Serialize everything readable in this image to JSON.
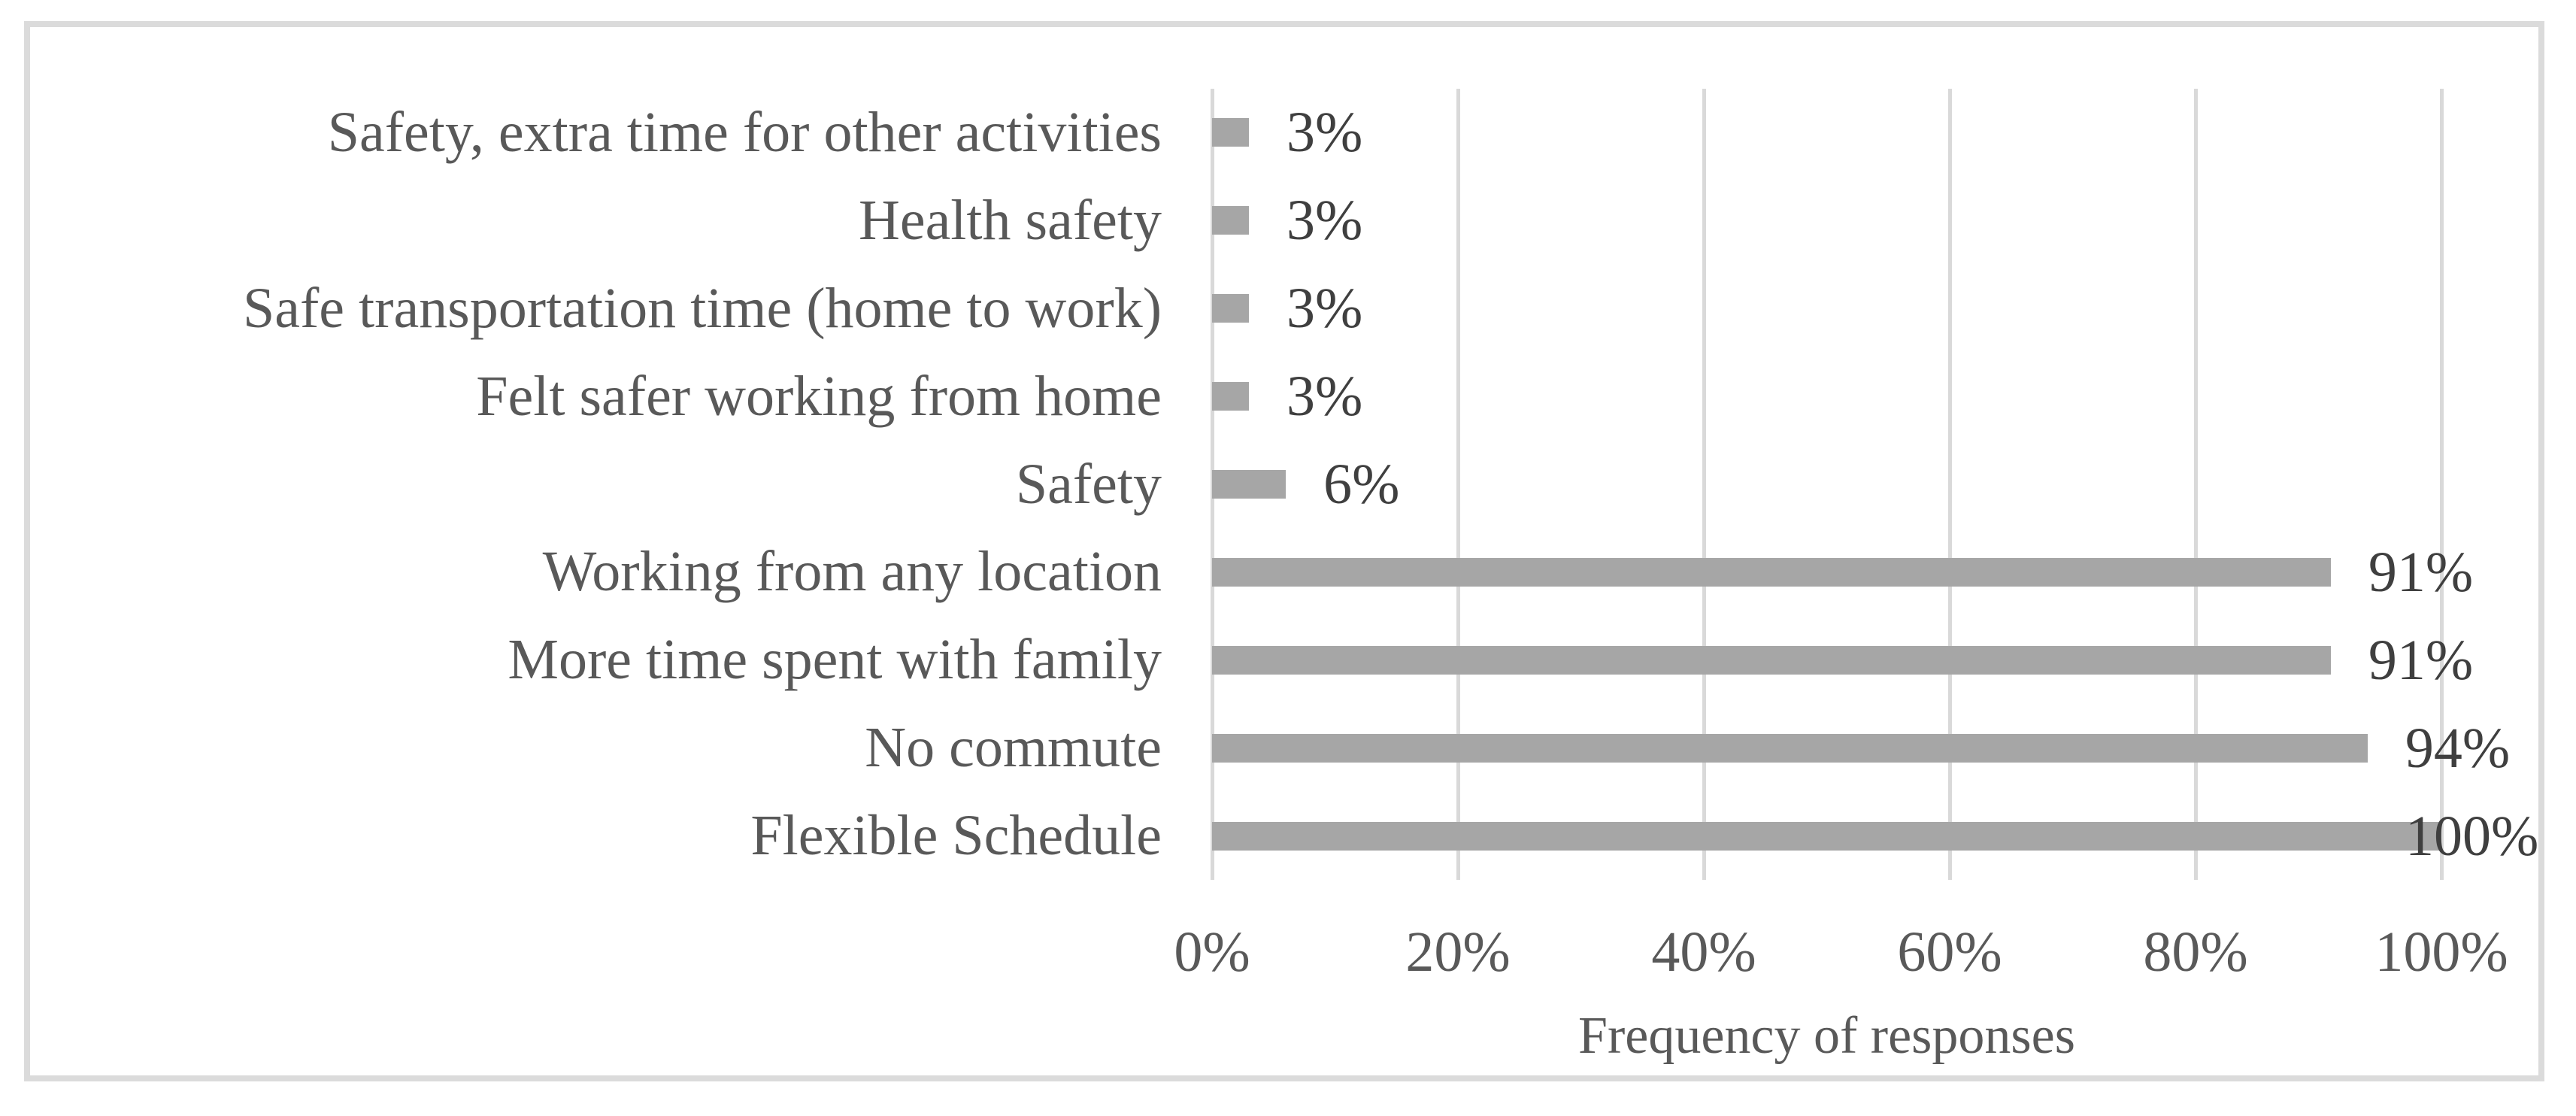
{
  "chart_data": {
    "type": "bar",
    "orientation": "horizontal",
    "title": "",
    "xlabel": "Frequency of responses",
    "ylabel": "",
    "categories": [
      "Safety, extra time for other activities",
      "Health safety",
      "Safe transportation time (home to work)",
      "Felt safer working from home",
      "Safety",
      "Working from any location",
      "More time spent with family",
      "No commute",
      "Flexible Schedule"
    ],
    "values": [
      3,
      3,
      3,
      3,
      6,
      91,
      91,
      94,
      100
    ],
    "data_labels": [
      "3%",
      "3%",
      "3%",
      "3%",
      "6%",
      "91%",
      "91%",
      "94%",
      "100%"
    ],
    "x_tick_values": [
      0,
      20,
      40,
      60,
      80,
      100
    ],
    "x_tick_labels": [
      "0%",
      "20%",
      "40%",
      "60%",
      "80%",
      "100%"
    ],
    "xlim": [
      0,
      100
    ],
    "grid": "vertical-only",
    "legend": "none",
    "colors": {
      "bar": "#a6a6a6",
      "gridline": "#d9d9d9",
      "frame_border": "#dbdbdb",
      "category_text": "#595959",
      "value_text": "#3f3f3f",
      "tick_text": "#595959",
      "background": "#ffffff"
    }
  }
}
